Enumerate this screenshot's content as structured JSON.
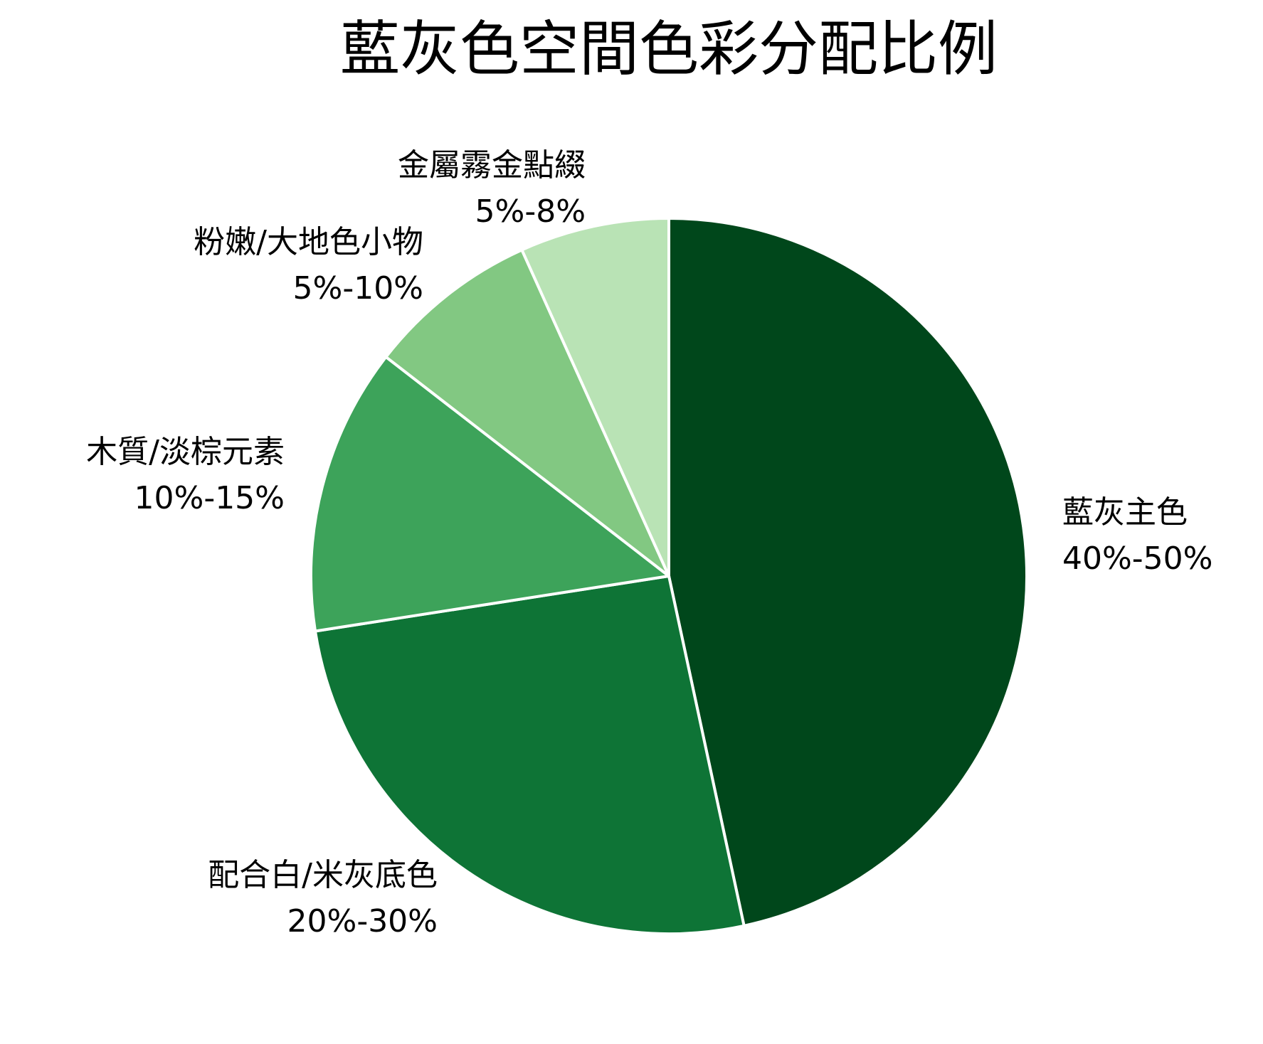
{
  "chart_data": {
    "type": "pie",
    "title": "藍灰色空間色彩分配比例",
    "slices": [
      {
        "label": "藍灰主色",
        "range": "40%-50%",
        "value": 45,
        "color": "#00471b"
      },
      {
        "label": "配合白/米灰底色",
        "range": "20%-30%",
        "value": 25,
        "color": "#0e7436"
      },
      {
        "label": "木質/淡棕元素",
        "range": "10%-15%",
        "value": 12.5,
        "color": "#3da35a"
      },
      {
        "label": "粉嫩/大地色小物",
        "range": "5%-10%",
        "value": 7.5,
        "color": "#82c882"
      },
      {
        "label": "金屬霧金點綴",
        "range": "5%-8%",
        "value": 6.5,
        "color": "#b9e3b5"
      }
    ],
    "start_angle": "12 o'clock",
    "direction": "clockwise",
    "slice_border_color": "#ffffff",
    "legend": "none"
  }
}
